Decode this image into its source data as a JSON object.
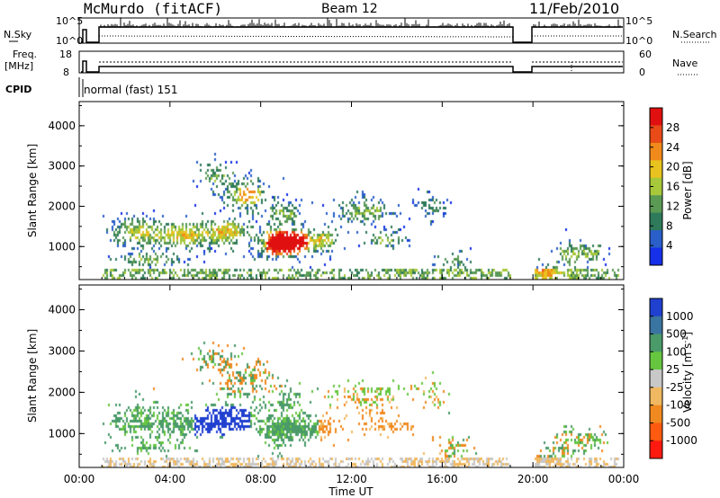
{
  "header": {
    "station": "McMurdo (fitACF)",
    "beam": "Beam 12",
    "date": "11/Feb/2010"
  },
  "top_panels": {
    "nsky_label": "N.Sky",
    "nsearch_label": "N.Search",
    "freq_label_1": "Freq.",
    "freq_label_2": "[MHz]",
    "nave_label": "Nave",
    "cpid_label": "CPID",
    "cpid_value": "normal (fast) 151",
    "left_ticks_noise": [
      "10^5",
      "10^0"
    ],
    "right_ticks_noise": [
      "10^5",
      "10^0"
    ],
    "left_ticks_freq": [
      "18",
      "8"
    ],
    "right_ticks_freq": [
      "60",
      "0"
    ]
  },
  "colors": {
    "power": [
      "#1530e8",
      "#2a5ec8",
      "#2e7a5a",
      "#5a9a55",
      "#a6c83a",
      "#e8c21f",
      "#f08a1a",
      "#e84a18",
      "#e01010"
    ],
    "velocity": [
      "#ff1a10",
      "#ff5a10",
      "#f08a20",
      "#f0b860",
      "#c8c8c8",
      "#66c640",
      "#4a9a6a",
      "#3a74a0",
      "#2040d0"
    ]
  },
  "chart_data": [
    {
      "type": "heatmap",
      "panel": "power",
      "xlabel": "",
      "ylabel": "Slant Range [km]",
      "x_ticks": [
        "00:00",
        "04:00",
        "08:00",
        "12:00",
        "16:00",
        "20:00",
        "00:00"
      ],
      "x_range_hours": [
        0,
        24
      ],
      "y_ticks": [
        1000,
        2000,
        3000,
        4000
      ],
      "ylim": [
        180,
        4600
      ],
      "colorbar": {
        "label": "Power [dB]",
        "ticks": [
          "4",
          "8",
          "12",
          "16",
          "20",
          "24",
          "28"
        ],
        "range": [
          0,
          30
        ]
      },
      "data_gap_hours": [
        19.0,
        20.0
      ]
    },
    {
      "type": "heatmap",
      "panel": "velocity",
      "xlabel": "Time UT",
      "ylabel": "Slant Range [km]",
      "x_ticks": [
        "00:00",
        "04:00",
        "08:00",
        "12:00",
        "16:00",
        "20:00",
        "00:00"
      ],
      "x_range_hours": [
        0,
        24
      ],
      "y_ticks": [
        1000,
        2000,
        3000,
        4000
      ],
      "ylim": [
        180,
        4600
      ],
      "colorbar": {
        "label": "Velocity [m s-1]",
        "label_main": "Velocity [m s",
        "label_sup": "-1",
        "label_end": "]",
        "ticks": [
          "1000",
          "500",
          "100",
          "25",
          "-25",
          "-100",
          "-500",
          "-1000"
        ]
      },
      "data_gap_hours": [
        19.0,
        20.0
      ]
    }
  ]
}
